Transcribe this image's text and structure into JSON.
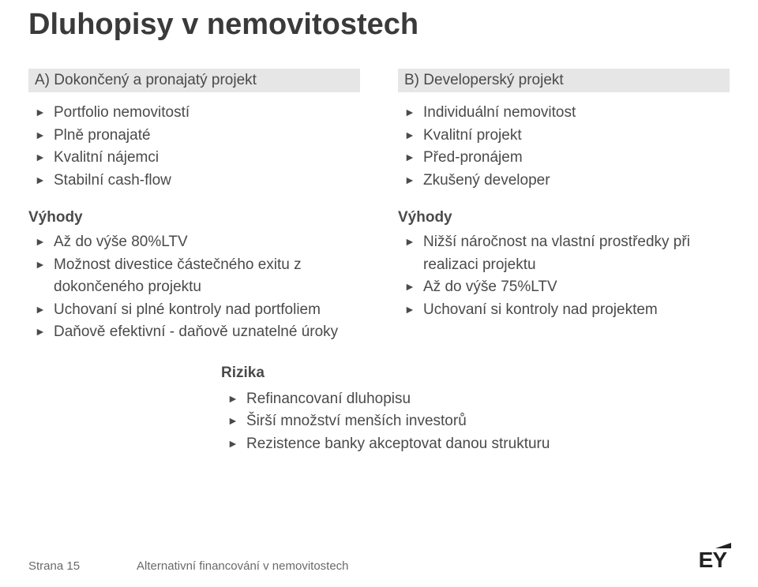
{
  "title": "Dluhopisy v nemovitostech",
  "columnA": {
    "heading": "A) Dokončený a pronajatý projekt",
    "items": [
      "Portfolio nemovitostí",
      "Plně pronajaté",
      "Kvalitní nájemci",
      "Stabilní cash-flow"
    ],
    "benefitsLabel": "Výhody",
    "benefits": [
      "Až do výše 80%LTV",
      "Možnost divestice částečného exitu z dokončeného projektu",
      "Uchovaní si plné kontroly nad portfoliem",
      "Daňově efektivní  - daňově uznatelné úroky"
    ]
  },
  "columnB": {
    "heading": "B) Developerský projekt",
    "items": [
      "Individuální nemovitost",
      "Kvalitní projekt",
      "Před-pronájem",
      "Zkušený developer"
    ],
    "benefitsLabel": "Výhody",
    "benefits": [
      "Nižší náročnost na vlastní prostředky při realizaci projektu",
      "Až do výše 75%LTV",
      "Uchovaní si kontroly nad projektem"
    ]
  },
  "risks": {
    "label": "Rizika",
    "items": [
      "Refinancovaní dluhopisu",
      "Širší množství menších investorů",
      "Rezistence banky akceptovat danou strukturu"
    ]
  },
  "footer": {
    "page": "Strana 15",
    "subtitle": "Alternativní financování v nemovitostech",
    "logo": "EY"
  }
}
